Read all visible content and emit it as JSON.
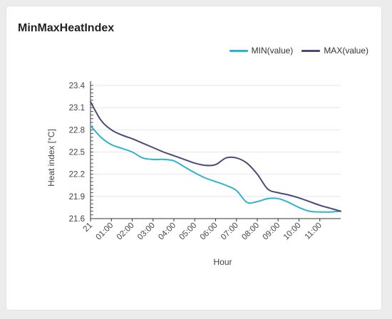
{
  "card": {
    "title": "MinMaxHeatIndex"
  },
  "colors": {
    "min": "#2fb3cc",
    "max": "#4a4a78",
    "grid": "#e4e4f2",
    "axis": "#333333"
  },
  "chart_data": {
    "type": "line",
    "title": "MinMaxHeatIndex",
    "xlabel": "Hour",
    "ylabel": "Heat index [°C]",
    "x": [
      0,
      0.5,
      1,
      1.5,
      2,
      2.5,
      3,
      3.5,
      4,
      4.5,
      5,
      5.5,
      6,
      6.5,
      7,
      7.5,
      8,
      8.5,
      9,
      9.5,
      10,
      10.5,
      11,
      11.5,
      12
    ],
    "x_ticks": [
      0,
      1,
      2,
      3,
      4,
      5,
      6,
      7,
      8,
      9,
      10,
      11
    ],
    "x_tick_labels": [
      "21",
      "01:00",
      "02:00",
      "03:00",
      "04:00",
      "05:00",
      "06:00",
      "07:00",
      "08:00",
      "09:00",
      "10:00",
      "11:00"
    ],
    "ylim": [
      21.6,
      23.4
    ],
    "y_ticks": [
      21.6,
      21.9,
      22.2,
      22.5,
      22.8,
      23.1,
      23.4
    ],
    "grid": true,
    "legend_position": "top-right",
    "series": [
      {
        "name": "MIN(value)",
        "color_key": "min",
        "values": [
          22.86,
          22.7,
          22.6,
          22.55,
          22.5,
          22.42,
          22.4,
          22.4,
          22.38,
          22.3,
          22.22,
          22.15,
          22.1,
          22.05,
          21.98,
          21.82,
          21.83,
          21.87,
          21.87,
          21.82,
          21.75,
          21.7,
          21.69,
          21.69,
          21.7
        ]
      },
      {
        "name": "MAX(value)",
        "color_key": "max",
        "values": [
          23.18,
          22.93,
          22.8,
          22.73,
          22.68,
          22.62,
          22.56,
          22.5,
          22.45,
          22.4,
          22.35,
          22.32,
          22.33,
          22.42,
          22.42,
          22.35,
          22.2,
          22.0,
          21.95,
          21.92,
          21.88,
          21.83,
          21.78,
          21.74,
          21.7
        ]
      }
    ]
  }
}
